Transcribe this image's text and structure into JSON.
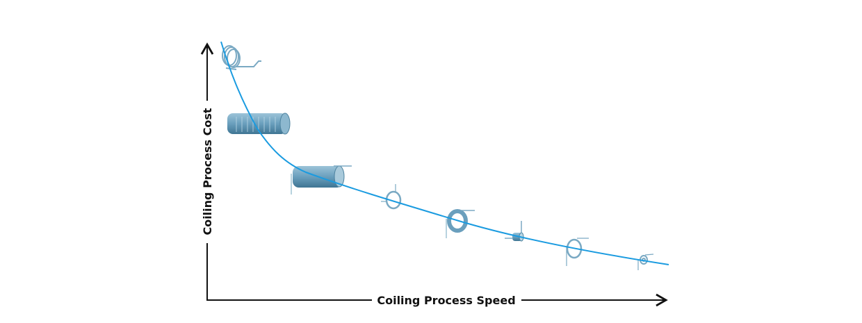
{
  "diagram": {
    "x_axis_label": "Coiling Process Speed",
    "y_axis_label": "Coiling Process Cost",
    "curve_color": "#1a9be0",
    "axis_color": "#111111",
    "spring_color": "#6fa3bf",
    "springs": [
      {
        "type": "double-torsion-spring"
      },
      {
        "type": "long-extension-spring"
      },
      {
        "type": "compression-spring"
      },
      {
        "type": "single-loop-torsion-spring"
      },
      {
        "type": "wide-torsion-spring"
      },
      {
        "type": "small-torsion-spring"
      },
      {
        "type": "loop-torsion-spring"
      },
      {
        "type": "tiny-torsion-spring"
      }
    ]
  }
}
